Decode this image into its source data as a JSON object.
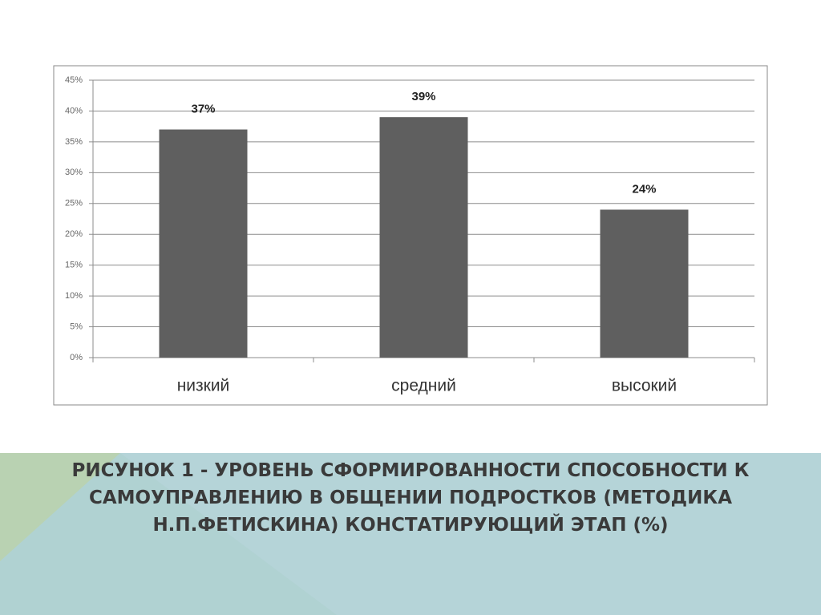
{
  "chart_data": {
    "type": "bar",
    "title": "РИСУНОК 1 - УРОВЕНЬ СФОРМИРОВАННОСТИ СПОСОБНОСТИ К САМОУПРАВЛЕНИЮ В ОБЩЕНИИ ПОДРОСТКОВ (МЕТОДИКА Н.П.ФЕТИСКИНА) КОНСТАТИРУЮЩИЙ ЭТАП (%)",
    "categories": [
      "низкий",
      "средний",
      "высокий"
    ],
    "values": [
      37,
      39,
      24
    ],
    "value_labels": [
      "37%",
      "39%",
      "24%"
    ],
    "color": "#5f5f5f",
    "ylim": [
      0,
      45
    ],
    "yticks": [
      {
        "value": 0,
        "label": "0%"
      },
      {
        "value": 5,
        "label": "5%"
      },
      {
        "value": 10,
        "label": "10%"
      },
      {
        "value": 15,
        "label": "15%"
      },
      {
        "value": 20,
        "label": "20%"
      },
      {
        "value": 25,
        "label": "25%"
      },
      {
        "value": 30,
        "label": "30%"
      },
      {
        "value": 35,
        "label": "35%"
      },
      {
        "value": 40,
        "label": "40%"
      },
      {
        "value": 45,
        "label": "45%"
      }
    ],
    "grid": true
  }
}
